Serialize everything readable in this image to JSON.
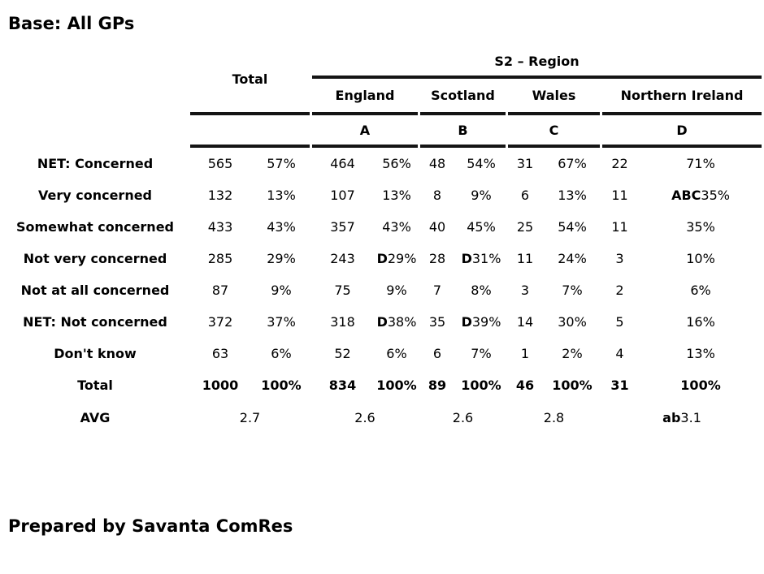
{
  "page": {
    "title": "Base: All GPs",
    "footer": "Prepared by Savanta ComRes"
  },
  "colors": {
    "text": "#000000",
    "rule": "#141414",
    "background": "#ffffff"
  },
  "table": {
    "total_label": "Total",
    "region_group_label": "S2 – Region",
    "region_columns": [
      {
        "name": "England",
        "letter": "A"
      },
      {
        "name": "Scotland",
        "letter": "B"
      },
      {
        "name": "Wales",
        "letter": "C"
      },
      {
        "name": "Northern Ireland",
        "letter": "D"
      }
    ],
    "rows": [
      {
        "label": "NET: Concerned",
        "bold_row": false,
        "cells": [
          {
            "s": "",
            "v": "565"
          },
          {
            "s": "",
            "v": "57%"
          },
          {
            "s": "",
            "v": "464"
          },
          {
            "s": "",
            "v": "56%"
          },
          {
            "s": "",
            "v": "48"
          },
          {
            "s": "",
            "v": "54%"
          },
          {
            "s": "",
            "v": "31"
          },
          {
            "s": "",
            "v": "67%"
          },
          {
            "s": "",
            "v": "22"
          },
          {
            "s": "",
            "v": "71%"
          }
        ]
      },
      {
        "label": "Very concerned",
        "bold_row": false,
        "cells": [
          {
            "s": "",
            "v": "132"
          },
          {
            "s": "",
            "v": "13%"
          },
          {
            "s": "",
            "v": "107"
          },
          {
            "s": "",
            "v": "13%"
          },
          {
            "s": "",
            "v": "8"
          },
          {
            "s": "",
            "v": "9%"
          },
          {
            "s": "",
            "v": "6"
          },
          {
            "s": "",
            "v": "13%"
          },
          {
            "s": "",
            "v": "11"
          },
          {
            "s": "ABC",
            "v": "35%"
          }
        ]
      },
      {
        "label": "Somewhat concerned",
        "bold_row": false,
        "cells": [
          {
            "s": "",
            "v": "433"
          },
          {
            "s": "",
            "v": "43%"
          },
          {
            "s": "",
            "v": "357"
          },
          {
            "s": "",
            "v": "43%"
          },
          {
            "s": "",
            "v": "40"
          },
          {
            "s": "",
            "v": "45%"
          },
          {
            "s": "",
            "v": "25"
          },
          {
            "s": "",
            "v": "54%"
          },
          {
            "s": "",
            "v": "11"
          },
          {
            "s": "",
            "v": "35%"
          }
        ]
      },
      {
        "label": "Not very concerned",
        "bold_row": false,
        "cells": [
          {
            "s": "",
            "v": "285"
          },
          {
            "s": "",
            "v": "29%"
          },
          {
            "s": "",
            "v": "243"
          },
          {
            "s": "D",
            "v": "29%"
          },
          {
            "s": "",
            "v": "28"
          },
          {
            "s": "D",
            "v": "31%"
          },
          {
            "s": "",
            "v": "11"
          },
          {
            "s": "",
            "v": "24%"
          },
          {
            "s": "",
            "v": "3"
          },
          {
            "s": "",
            "v": "10%"
          }
        ]
      },
      {
        "label": "Not at all concerned",
        "bold_row": false,
        "cells": [
          {
            "s": "",
            "v": "87"
          },
          {
            "s": "",
            "v": "9%"
          },
          {
            "s": "",
            "v": "75"
          },
          {
            "s": "",
            "v": "9%"
          },
          {
            "s": "",
            "v": "7"
          },
          {
            "s": "",
            "v": "8%"
          },
          {
            "s": "",
            "v": "3"
          },
          {
            "s": "",
            "v": "7%"
          },
          {
            "s": "",
            "v": "2"
          },
          {
            "s": "",
            "v": "6%"
          }
        ]
      },
      {
        "label": "NET: Not concerned",
        "bold_row": false,
        "cells": [
          {
            "s": "",
            "v": "372"
          },
          {
            "s": "",
            "v": "37%"
          },
          {
            "s": "",
            "v": "318"
          },
          {
            "s": "D",
            "v": "38%"
          },
          {
            "s": "",
            "v": "35"
          },
          {
            "s": "D",
            "v": "39%"
          },
          {
            "s": "",
            "v": "14"
          },
          {
            "s": "",
            "v": "30%"
          },
          {
            "s": "",
            "v": "5"
          },
          {
            "s": "",
            "v": "16%"
          }
        ]
      },
      {
        "label": "Don't know",
        "bold_row": false,
        "cells": [
          {
            "s": "",
            "v": "63"
          },
          {
            "s": "",
            "v": "6%"
          },
          {
            "s": "",
            "v": "52"
          },
          {
            "s": "",
            "v": "6%"
          },
          {
            "s": "",
            "v": "6"
          },
          {
            "s": "",
            "v": "7%"
          },
          {
            "s": "",
            "v": "1"
          },
          {
            "s": "",
            "v": "2%"
          },
          {
            "s": "",
            "v": "4"
          },
          {
            "s": "",
            "v": "13%"
          }
        ]
      },
      {
        "label": "Total",
        "bold_row": true,
        "cells": [
          {
            "s": "",
            "v": "1000"
          },
          {
            "s": "",
            "v": "100%"
          },
          {
            "s": "",
            "v": "834"
          },
          {
            "s": "",
            "v": "100%"
          },
          {
            "s": "",
            "v": "89"
          },
          {
            "s": "",
            "v": "100%"
          },
          {
            "s": "",
            "v": "46"
          },
          {
            "s": "",
            "v": "100%"
          },
          {
            "s": "",
            "v": "31"
          },
          {
            "s": "",
            "v": "100%"
          }
        ]
      }
    ],
    "avg_row": {
      "label": "AVG",
      "cells": [
        {
          "s": "",
          "v": "2.7"
        },
        {
          "s": "",
          "v": "2.6"
        },
        {
          "s": "",
          "v": "2.6"
        },
        {
          "s": "",
          "v": "2.8"
        },
        {
          "s": "ab",
          "v": "3.1"
        }
      ]
    }
  }
}
